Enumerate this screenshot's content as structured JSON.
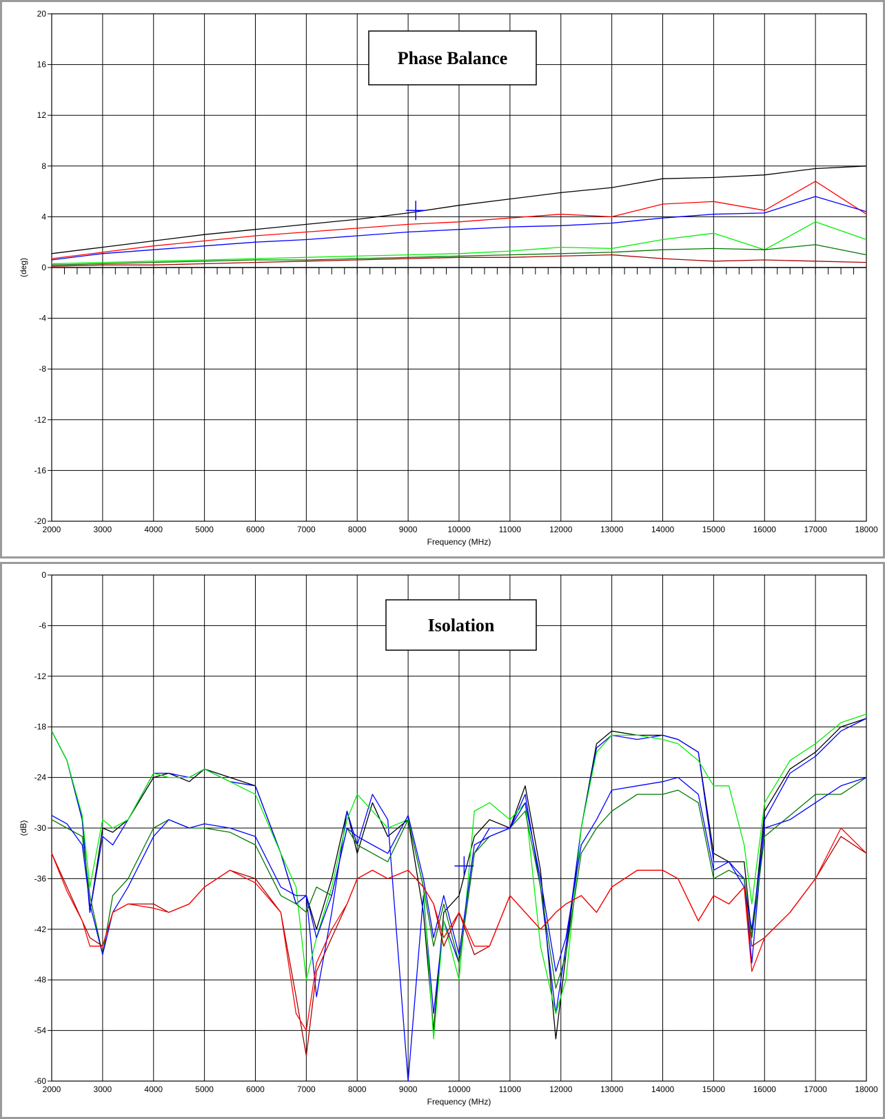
{
  "colors": {
    "panel_border": "#9a9a9a",
    "black": "#000000",
    "red": "#ff0000",
    "blue": "#0000ff",
    "light_green": "#00ee00",
    "dark_green": "#007700",
    "dark_red": "#aa0000"
  },
  "chart_data": [
    {
      "type": "line",
      "title": "Phase Balance",
      "xlabel": "Frequency (MHz)",
      "ylabel": "(deg)",
      "xlim": [
        2000,
        18000
      ],
      "ylim": [
        -20,
        20
      ],
      "x_ticks": [
        "2000",
        "3000",
        "4000",
        "5000",
        "6000",
        "7000",
        "8000",
        "9000",
        "10000",
        "11000",
        "12000",
        "13000",
        "14000",
        "15000",
        "16000",
        "17000",
        "18000"
      ],
      "y_ticks": [
        "20",
        "16",
        "12",
        "8",
        "4",
        "0",
        "-4",
        "-8",
        "-12",
        "-16",
        "-20"
      ],
      "grid": true,
      "legend": "none",
      "marker": {
        "x": 9150,
        "y": 4.5
      },
      "x": [
        2000,
        3000,
        4000,
        5000,
        6000,
        7000,
        8000,
        9000,
        10000,
        11000,
        12000,
        13000,
        14000,
        15000,
        16000,
        17000,
        18000
      ],
      "series": [
        {
          "color": "#000000",
          "values": [
            1.1,
            1.6,
            2.1,
            2.6,
            3.0,
            3.4,
            3.8,
            4.3,
            4.9,
            5.4,
            5.9,
            6.3,
            7.0,
            7.1,
            7.3,
            7.8,
            8.0
          ]
        },
        {
          "color": "#ff0000",
          "values": [
            0.7,
            1.2,
            1.7,
            2.1,
            2.5,
            2.8,
            3.1,
            3.4,
            3.6,
            3.9,
            4.2,
            4.0,
            5.0,
            5.2,
            4.5,
            6.8,
            4.2
          ]
        },
        {
          "color": "#0000ff",
          "values": [
            0.6,
            1.1,
            1.4,
            1.7,
            2.0,
            2.2,
            2.5,
            2.8,
            3.0,
            3.2,
            3.3,
            3.5,
            3.9,
            4.2,
            4.3,
            5.6,
            4.4
          ]
        },
        {
          "color": "#00ee00",
          "values": [
            0.3,
            0.4,
            0.5,
            0.6,
            0.7,
            0.8,
            0.9,
            1.0,
            1.1,
            1.3,
            1.6,
            1.5,
            2.2,
            2.7,
            1.4,
            3.6,
            2.2
          ]
        },
        {
          "color": "#007700",
          "values": [
            0.2,
            0.3,
            0.4,
            0.5,
            0.6,
            0.6,
            0.7,
            0.8,
            0.9,
            1.0,
            1.1,
            1.2,
            1.4,
            1.5,
            1.4,
            1.8,
            1.0
          ]
        },
        {
          "color": "#aa0000",
          "values": [
            0.1,
            0.2,
            0.2,
            0.3,
            0.4,
            0.5,
            0.6,
            0.7,
            0.8,
            0.8,
            0.9,
            1.0,
            0.7,
            0.5,
            0.6,
            0.5,
            0.4
          ]
        }
      ]
    },
    {
      "type": "line",
      "title": "Isolation",
      "xlabel": "Frequency (MHz)",
      "ylabel": "(dB)",
      "xlim": [
        2000,
        18000
      ],
      "ylim": [
        -60,
        0
      ],
      "x_ticks": [
        "2000",
        "3000",
        "4000",
        "5000",
        "6000",
        "7000",
        "8000",
        "9000",
        "10000",
        "11000",
        "12000",
        "13000",
        "14000",
        "15000",
        "16000",
        "17000",
        "18000"
      ],
      "y_ticks": [
        "0",
        "-6",
        "-12",
        "-18",
        "-24",
        "-30",
        "-36",
        "-42",
        "-48",
        "-54",
        "-60"
      ],
      "grid": true,
      "legend": "none",
      "marker": {
        "x": 10100,
        "y": -34.5
      },
      "x": [
        2000,
        2300,
        2600,
        2750,
        3000,
        3200,
        3500,
        4000,
        4300,
        4700,
        5000,
        5500,
        6000,
        6500,
        6800,
        7000,
        7200,
        7500,
        7800,
        8000,
        8300,
        8600,
        9000,
        9300,
        9500,
        9700,
        10000,
        10300,
        10600,
        11000,
        11300,
        11600,
        11900,
        12100,
        12400,
        12700,
        13000,
        13500,
        14000,
        14300,
        14700,
        15000,
        15300,
        15600,
        15750,
        16000,
        16500,
        17000,
        17500,
        18000
      ],
      "series": [
        {
          "color": "#000000",
          "values": [
            -18.5,
            -22,
            -29,
            -40,
            -30,
            -30.5,
            -29,
            -24,
            -23.5,
            -24.5,
            -23,
            -24,
            -25,
            -33,
            -39,
            -38,
            -42,
            -36,
            -28,
            -33,
            -27,
            -31,
            -29,
            -40,
            -54,
            -40,
            -38,
            -31,
            -29,
            -30,
            -25,
            -35,
            -55,
            -45,
            -30,
            -20,
            -18.5,
            -19,
            -19,
            -19.5,
            -21,
            -33,
            -34,
            -34,
            -43,
            -28,
            -23,
            -21,
            -18,
            -17
          ]
        },
        {
          "color": "#0000ff",
          "values": [
            -18.5,
            -22,
            -29,
            -40,
            -31,
            -32,
            -29,
            -23.5,
            -23.5,
            -24,
            -23,
            -24.5,
            -25,
            -33,
            -39,
            -38,
            -50,
            -40,
            -28,
            -32,
            -26,
            -29,
            -60,
            -38,
            -52,
            -41,
            -46,
            -33,
            -30,
            -30,
            -26,
            -37,
            -52,
            -44,
            -30,
            -20.5,
            -19,
            -19.5,
            -19,
            -19.5,
            -21,
            -34,
            -34,
            -36,
            -46,
            -29,
            -23.5,
            -21.5,
            -18.5,
            -17
          ]
        },
        {
          "color": "#00ee00",
          "values": [
            -18.5,
            -22,
            -28.5,
            -37,
            -29,
            -30,
            -29,
            -23.5,
            -24,
            -24,
            -23,
            -24.5,
            -26,
            -33,
            -37,
            -48,
            -43,
            -37,
            -29,
            -26,
            -28,
            -30,
            -29,
            -37,
            -55,
            -41,
            -48,
            -28,
            -27,
            -29,
            -27,
            -44,
            -52,
            -48,
            -30,
            -21,
            -19,
            -19,
            -19.5,
            -20,
            -22,
            -25,
            -25,
            -32,
            -39,
            -27,
            -22,
            -20,
            -17.5,
            -16.5
          ]
        },
        {
          "color": "#007700",
          "values": [
            -29,
            -30,
            -31,
            -38,
            -45,
            -38,
            -36,
            -30,
            -29,
            -30,
            -30,
            -30.5,
            -32,
            -38,
            -39,
            -40,
            -37,
            -38,
            -30,
            -32,
            -33,
            -34,
            -29,
            -37,
            -44,
            -39,
            -46,
            -33,
            -31,
            -30,
            -28,
            -37,
            -49,
            -45,
            -33,
            -30,
            -28,
            -26,
            -26,
            -25.5,
            -27,
            -36,
            -35,
            -36,
            -43,
            -31,
            -28.5,
            -26,
            -26,
            -24
          ]
        },
        {
          "color": "#0000ff",
          "values": [
            -28.5,
            -29.5,
            -32,
            -39,
            -45,
            -40,
            -37,
            -31,
            -29,
            -30,
            -29.5,
            -30,
            -31,
            -37,
            -38,
            -38,
            -43,
            -38,
            -30,
            -31,
            -32,
            -33,
            -28.5,
            -36,
            -43,
            -38,
            -45,
            -32,
            -31,
            -30,
            -27,
            -36,
            -47,
            -43,
            -32,
            -29,
            -25.5,
            -25,
            -24.5,
            -24,
            -26,
            -35,
            -34,
            -37,
            -42,
            -30,
            -29,
            -27,
            -25,
            -24
          ]
        },
        {
          "color": "#aa0000",
          "values": [
            -33,
            -37,
            -41,
            -43,
            -44,
            -40,
            -39,
            -39,
            -40,
            -39,
            -37,
            -35,
            -36,
            -40,
            -50,
            -57,
            -47,
            -43,
            -39,
            -36,
            -35,
            -36,
            -35,
            -37,
            -39,
            -44,
            -40,
            -45,
            -44,
            -38,
            -40,
            -42,
            -40,
            -39,
            -38,
            -40,
            -37,
            -35,
            -35,
            -36,
            -41,
            -38,
            -39,
            -37,
            -44,
            -43,
            -40,
            -36,
            -31,
            -33
          ]
        },
        {
          "color": "#ff0000",
          "values": [
            -33,
            -37.5,
            -41,
            -44,
            -44,
            -40,
            -39,
            -39.5,
            -40,
            -39,
            -37,
            -35,
            -36.5,
            -40,
            -52,
            -54,
            -46,
            -42,
            -39,
            -36,
            -35,
            -36,
            -35,
            -37,
            -39,
            -43,
            -40,
            -44,
            -44,
            -38,
            -40,
            -42,
            -40,
            -39,
            -38,
            -40,
            -37,
            -35,
            -35,
            -36,
            -41,
            -38,
            -39,
            -37,
            -47,
            -43,
            -40,
            -36,
            -30,
            -33
          ]
        }
      ]
    }
  ]
}
